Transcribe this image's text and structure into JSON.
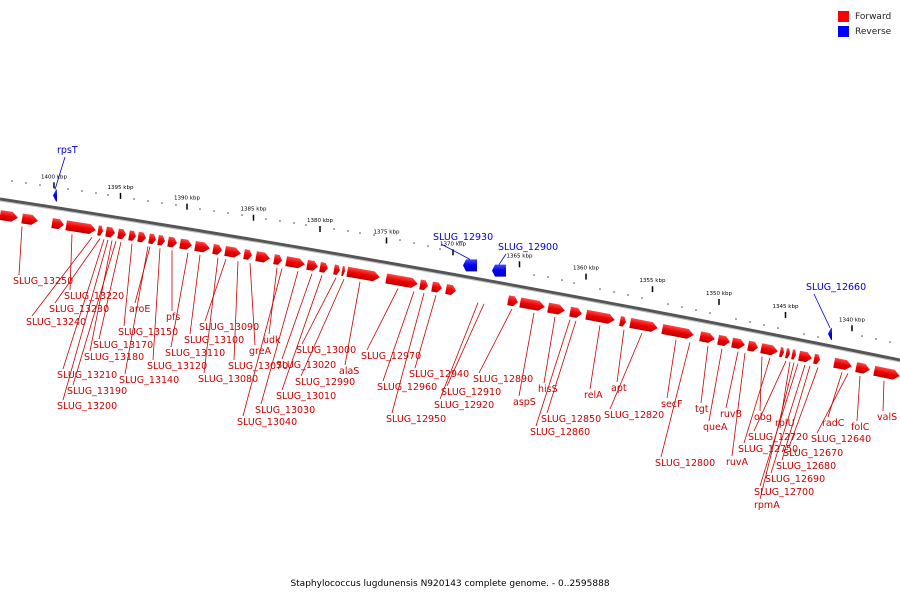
{
  "caption": "Staphylococcus lugdunensis N920143 complete genome. - 0..2595888",
  "legend": [
    {
      "label": "Forward",
      "color": "#ff0000"
    },
    {
      "label": "Reverse",
      "color": "#0000ff"
    }
  ],
  "ticks": [
    {
      "pos": 1400,
      "label": "1400 kbp"
    },
    {
      "pos": 1395,
      "label": "1395 kbp"
    },
    {
      "pos": 1390,
      "label": "1390 kbp"
    },
    {
      "pos": 1385,
      "label": "1385 kbp"
    },
    {
      "pos": 1380,
      "label": "1380 kbp"
    },
    {
      "pos": 1375,
      "label": "1375 kbp"
    },
    {
      "pos": 1370,
      "label": "1370 kbp"
    },
    {
      "pos": 1365,
      "label": "1365 kbp"
    },
    {
      "pos": 1360,
      "label": "1360 kbp"
    },
    {
      "pos": 1355,
      "label": "1355 kbp"
    },
    {
      "pos": 1350,
      "label": "1350 kbp"
    },
    {
      "pos": 1345,
      "label": "1345 kbp"
    },
    {
      "pos": 1340,
      "label": "1340 kbp"
    }
  ],
  "reverse_features": [
    {
      "name": "rpsT",
      "pos": 1400.2
    },
    {
      "name": "SLUG_12930",
      "pos": 1369.3
    },
    {
      "name": "SLUG_12900",
      "pos": 1366.9
    },
    {
      "name": "SLUG_12660",
      "pos": 1342.6
    }
  ],
  "forward_features": [
    "SLUG_13250",
    "SLUG_13220",
    "SLUG_13230",
    "SLUG_13240",
    "aroE",
    "pfs",
    "SLUG_13150",
    "SLUG_13170",
    "SLUG_13180",
    "SLUG_13210",
    "SLUG_13190",
    "SLUG_13200",
    "SLUG_13140",
    "SLUG_13120",
    "SLUG_13110",
    "SLUG_13100",
    "SLUG_13090",
    "SLUG_13080",
    "SLUG_13070",
    "greA",
    "udk",
    "SLUG_13040",
    "SLUG_13030",
    "SLUG_13020",
    "SLUG_13010",
    "SLUG_13000",
    "SLUG_12990",
    "alaS",
    "SLUG_12970",
    "SLUG_12960",
    "SLUG_12950",
    "SLUG_12940",
    "SLUG_12910",
    "SLUG_12920",
    "SLUG_12890",
    "aspS",
    "hisS",
    "SLUG_12850",
    "SLUG_12860",
    "relA",
    "apt",
    "SLUG_12820",
    "secF",
    "SLUG_12800",
    "tgt",
    "queA",
    "ruvB",
    "ruvA",
    "obg",
    "SLUG_12750",
    "SLUG_12720",
    "rplU",
    "SLUG_12700",
    "SLUG_12690",
    "SLUG_12680",
    "SLUG_12670",
    "rpmA",
    "radC",
    "SLUG_12640",
    "folC",
    "valS"
  ]
}
